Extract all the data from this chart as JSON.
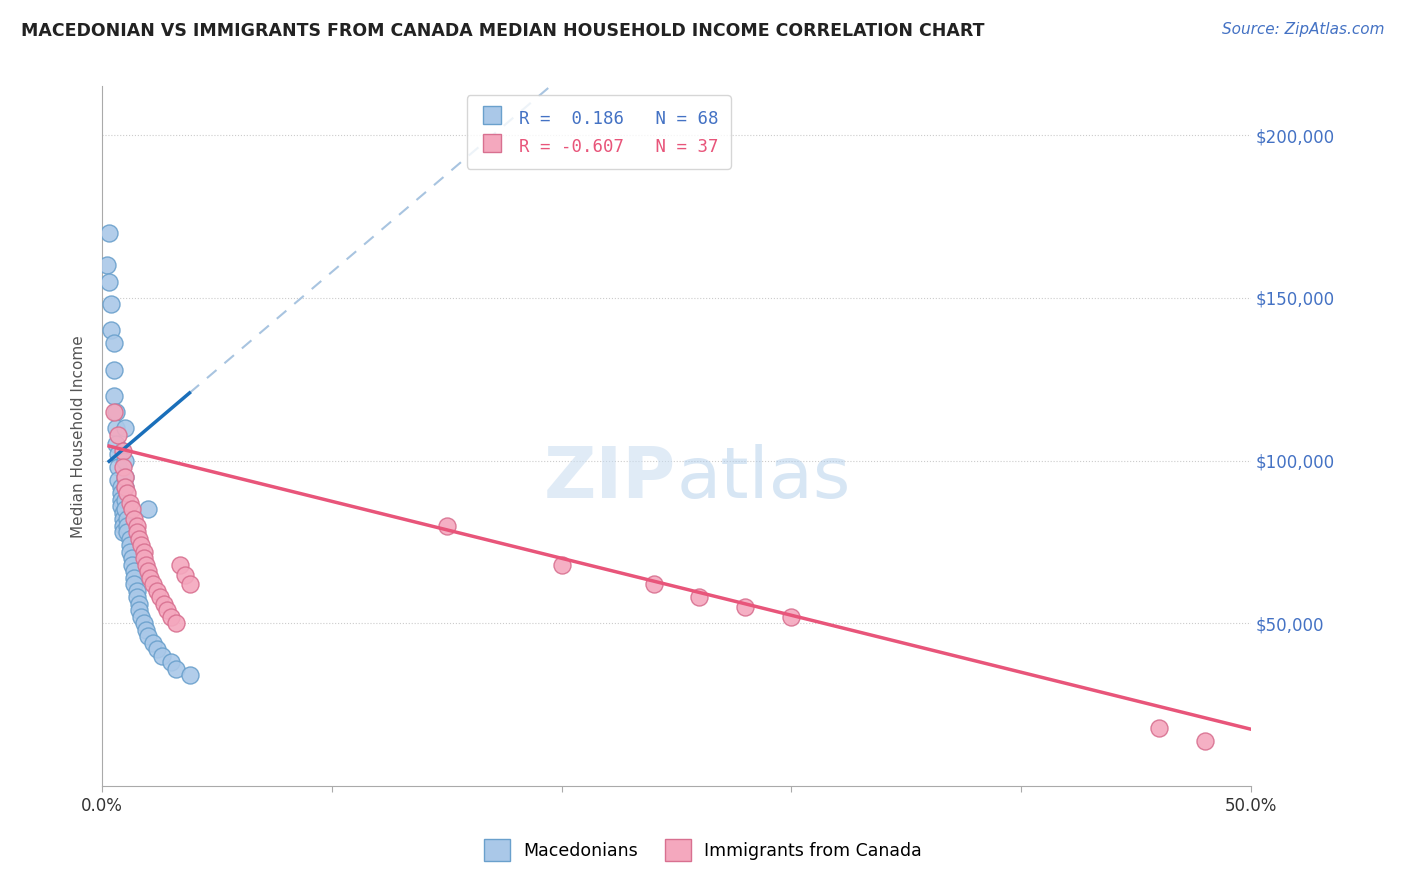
{
  "title": "MACEDONIAN VS IMMIGRANTS FROM CANADA MEDIAN HOUSEHOLD INCOME CORRELATION CHART",
  "source": "Source: ZipAtlas.com",
  "ylabel": "Median Household Income",
  "yticks": [
    0,
    50000,
    100000,
    150000,
    200000
  ],
  "ytick_labels": [
    "",
    "$50,000",
    "$100,000",
    "$150,000",
    "$200,000"
  ],
  "xlim": [
    0.0,
    0.5
  ],
  "ylim": [
    0,
    215000
  ],
  "watermark": "ZIPatlas",
  "blue_color": "#aac8e8",
  "pink_color": "#f4a8be",
  "blue_line_color": "#1a6fba",
  "pink_line_color": "#e8557a",
  "dashed_line_color": "#a8c4e0",
  "mac_R": 0.186,
  "can_R": -0.607,
  "macedonians_x": [
    0.002,
    0.003,
    0.004,
    0.004,
    0.005,
    0.005,
    0.005,
    0.006,
    0.006,
    0.006,
    0.007,
    0.007,
    0.007,
    0.008,
    0.008,
    0.008,
    0.008,
    0.009,
    0.009,
    0.009,
    0.009,
    0.01,
    0.01,
    0.01,
    0.01,
    0.01,
    0.011,
    0.011,
    0.011,
    0.012,
    0.012,
    0.012,
    0.013,
    0.013,
    0.014,
    0.014,
    0.014,
    0.015,
    0.015,
    0.016,
    0.016,
    0.017,
    0.018,
    0.019,
    0.02,
    0.022,
    0.024,
    0.026,
    0.03,
    0.032,
    0.038,
    0.003,
    0.01,
    0.02
  ],
  "macedonians_y": [
    160000,
    155000,
    148000,
    140000,
    136000,
    128000,
    120000,
    115000,
    110000,
    105000,
    102000,
    98000,
    94000,
    92000,
    90000,
    88000,
    86000,
    84000,
    82000,
    80000,
    78000,
    100000,
    95000,
    92000,
    88000,
    85000,
    82000,
    80000,
    78000,
    76000,
    74000,
    72000,
    70000,
    68000,
    66000,
    64000,
    62000,
    60000,
    58000,
    56000,
    54000,
    52000,
    50000,
    48000,
    46000,
    44000,
    42000,
    40000,
    38000,
    36000,
    34000,
    170000,
    110000,
    85000
  ],
  "canada_x": [
    0.005,
    0.007,
    0.009,
    0.009,
    0.01,
    0.01,
    0.011,
    0.012,
    0.013,
    0.014,
    0.015,
    0.015,
    0.016,
    0.017,
    0.018,
    0.018,
    0.019,
    0.02,
    0.021,
    0.022,
    0.024,
    0.025,
    0.027,
    0.028,
    0.03,
    0.032,
    0.034,
    0.036,
    0.038,
    0.15,
    0.2,
    0.24,
    0.26,
    0.28,
    0.3,
    0.46,
    0.48
  ],
  "canada_y": [
    115000,
    108000,
    103000,
    98000,
    95000,
    92000,
    90000,
    87000,
    85000,
    82000,
    80000,
    78000,
    76000,
    74000,
    72000,
    70000,
    68000,
    66000,
    64000,
    62000,
    60000,
    58000,
    56000,
    54000,
    52000,
    50000,
    68000,
    65000,
    62000,
    80000,
    68000,
    62000,
    58000,
    55000,
    52000,
    18000,
    14000
  ]
}
